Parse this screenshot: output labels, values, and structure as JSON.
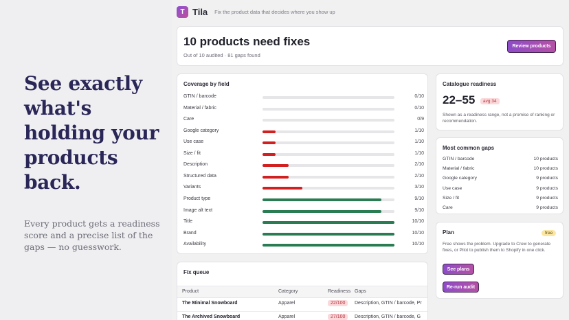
{
  "hero": {
    "title": "See exactly what's holding your products back.",
    "subtitle": "Every product gets a readiness score and a precise list of the gaps — no guesswork."
  },
  "app": {
    "logo_letter": "T",
    "name": "Tila",
    "tagline": "Fix the product data that decides where you show up"
  },
  "header": {
    "title": "10 products need fixes",
    "subtitle": "Out of 10 audited · 81 gaps found",
    "review_button": "Review products"
  },
  "coverage": {
    "title": "Coverage by field",
    "rows": [
      {
        "label": "GTIN / barcode",
        "value": "0/10",
        "fraction": 0.0,
        "color": "#d21f1f"
      },
      {
        "label": "Material / fabric",
        "value": "0/10",
        "fraction": 0.0,
        "color": "#d21f1f"
      },
      {
        "label": "Care",
        "value": "0/9",
        "fraction": 0.0,
        "color": "#d21f1f"
      },
      {
        "label": "Google category",
        "value": "1/10",
        "fraction": 0.1,
        "color": "#d21f1f"
      },
      {
        "label": "Use case",
        "value": "1/10",
        "fraction": 0.1,
        "color": "#d21f1f"
      },
      {
        "label": "Size / fit",
        "value": "1/10",
        "fraction": 0.1,
        "color": "#d21f1f"
      },
      {
        "label": "Description",
        "value": "2/10",
        "fraction": 0.2,
        "color": "#d21f1f"
      },
      {
        "label": "Structured data",
        "value": "2/10",
        "fraction": 0.2,
        "color": "#d21f1f"
      },
      {
        "label": "Variants",
        "value": "3/10",
        "fraction": 0.3,
        "color": "#d21f1f"
      },
      {
        "label": "Product type",
        "value": "9/10",
        "fraction": 0.9,
        "color": "#2a7d53"
      },
      {
        "label": "Image alt text",
        "value": "9/10",
        "fraction": 0.9,
        "color": "#2a7d53"
      },
      {
        "label": "Title",
        "value": "10/10",
        "fraction": 1.0,
        "color": "#2a7d53"
      },
      {
        "label": "Brand",
        "value": "10/10",
        "fraction": 1.0,
        "color": "#2a7d53"
      },
      {
        "label": "Availability",
        "value": "10/10",
        "fraction": 1.0,
        "color": "#2a7d53"
      }
    ]
  },
  "readiness": {
    "title": "Catalogue readiness",
    "range": "22–55",
    "avg": "avg 34",
    "note": "Shown as a readiness range, not a promise of ranking or recommendation."
  },
  "gaps": {
    "title": "Most common gaps",
    "items": [
      {
        "label": "GTIN / barcode",
        "value": "10 products"
      },
      {
        "label": "Material / fabric",
        "value": "10 products"
      },
      {
        "label": "Google category",
        "value": "9 products"
      },
      {
        "label": "Use case",
        "value": "9 products"
      },
      {
        "label": "Size / fit",
        "value": "9 products"
      },
      {
        "label": "Care",
        "value": "9 products"
      }
    ]
  },
  "plan": {
    "title": "Plan",
    "badge": "free",
    "note": "Free shows the problem. Upgrade to Crew to generate fixes, or Pilot to publish them to Shopify in one click.",
    "see_plans": "See plans",
    "rerun": "Re-run audit"
  },
  "queue": {
    "title": "Fix queue",
    "columns": {
      "product": "Product",
      "category": "Category",
      "readiness": "Readiness",
      "gaps": "Gaps"
    },
    "rows": [
      {
        "product": "The Minimal Snowboard",
        "category": "Apparel",
        "readiness": "22/100",
        "gaps": "Description, GTIN / barcode, Pr"
      },
      {
        "product": "The Archived Snowboard",
        "category": "Apparel",
        "readiness": "27/100",
        "gaps": "Description, GTIN / barcode, G"
      }
    ]
  }
}
